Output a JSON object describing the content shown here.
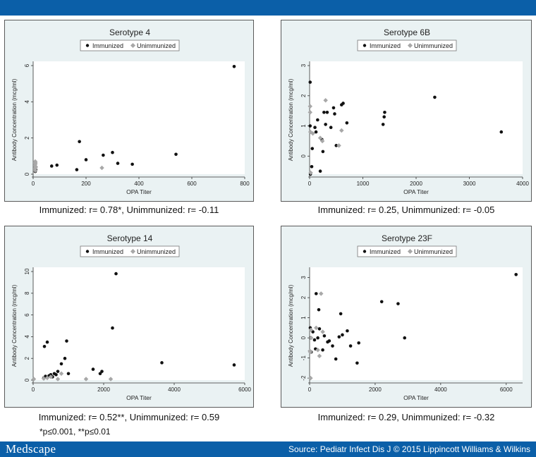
{
  "header": {
    "bar_color": "#0b5fa8"
  },
  "footer": {
    "brand": "Medscape",
    "source": "Source: Pediatr Infect Dis J © 2015 Lippincott Williams & Wilkins"
  },
  "footnote": "*p≤0.001, **p≤0.01",
  "colors": {
    "immunized": "#111111",
    "unimmunized": "#a8a8a8",
    "panel_bg": "#eaf2f3"
  },
  "chart_data": [
    {
      "type": "scatter",
      "title": "Serotype 4",
      "xlabel": "OPA Titer",
      "ylabel": "Antibody Concentration (mcg/ml)",
      "xlim": [
        0,
        800
      ],
      "ylim": [
        0,
        6
      ],
      "xticks": [
        0,
        200,
        400,
        600,
        800
      ],
      "yticks": [
        0,
        2,
        4,
        6
      ],
      "legend": [
        "Immunized",
        "Unimmunized"
      ],
      "caption": "Immunized: r= 0.78*, Unimmunized: r= -0.11",
      "series": [
        {
          "name": "Immunized",
          "points": [
            [
              8,
              0.15
            ],
            [
              8,
              0.2
            ],
            [
              8,
              0.3
            ],
            [
              8,
              0.4
            ],
            [
              10,
              0.25
            ],
            [
              70,
              0.45
            ],
            [
              90,
              0.5
            ],
            [
              165,
              0.25
            ],
            [
              175,
              1.8
            ],
            [
              200,
              0.8
            ],
            [
              265,
              1.05
            ],
            [
              300,
              1.2
            ],
            [
              320,
              0.6
            ],
            [
              375,
              0.55
            ],
            [
              540,
              1.1
            ],
            [
              760,
              5.95
            ]
          ]
        },
        {
          "name": "Unimmunized",
          "points": [
            [
              8,
              0.2
            ],
            [
              8,
              0.3
            ],
            [
              8,
              0.35
            ],
            [
              8,
              0.45
            ],
            [
              8,
              0.55
            ],
            [
              8,
              0.6
            ],
            [
              8,
              0.65
            ],
            [
              8,
              0.7
            ],
            [
              10,
              0.4
            ],
            [
              260,
              0.35
            ]
          ]
        }
      ]
    },
    {
      "type": "scatter",
      "title": "Serotype 6B",
      "xlabel": "OPA Titer",
      "ylabel": "Antibody Concentration (mcg/ml)",
      "xlim": [
        0,
        4000
      ],
      "ylim": [
        -0.6,
        3
      ],
      "xticks": [
        0,
        1000,
        2000,
        3000,
        4000
      ],
      "yticks": [
        0,
        1,
        2,
        3
      ],
      "legend": [
        "Immunized",
        "Unimmunized"
      ],
      "caption": "Immunized: r= 0.25, Unimmunized: r= -0.05",
      "series": [
        {
          "name": "Immunized",
          "points": [
            [
              10,
              2.45
            ],
            [
              10,
              1.0
            ],
            [
              15,
              -0.6
            ],
            [
              40,
              -0.35
            ],
            [
              50,
              0.25
            ],
            [
              100,
              0.95
            ],
            [
              120,
              0.8
            ],
            [
              150,
              1.2
            ],
            [
              200,
              -0.5
            ],
            [
              230,
              0.55
            ],
            [
              250,
              0.15
            ],
            [
              270,
              1.45
            ],
            [
              300,
              1.05
            ],
            [
              330,
              1.45
            ],
            [
              400,
              0.95
            ],
            [
              450,
              1.6
            ],
            [
              470,
              1.4
            ],
            [
              500,
              0.35
            ],
            [
              600,
              1.7
            ],
            [
              630,
              1.75
            ],
            [
              700,
              1.1
            ],
            [
              1380,
              1.05
            ],
            [
              1400,
              1.3
            ],
            [
              1410,
              1.45
            ],
            [
              2350,
              1.95
            ],
            [
              3600,
              0.8
            ]
          ]
        },
        {
          "name": "Unimmunized",
          "points": [
            [
              10,
              1.65
            ],
            [
              10,
              1.45
            ],
            [
              15,
              0.8
            ],
            [
              20,
              -0.55
            ],
            [
              60,
              0.75
            ],
            [
              200,
              0.6
            ],
            [
              240,
              0.5
            ],
            [
              300,
              1.85
            ],
            [
              550,
              0.35
            ],
            [
              600,
              0.85
            ]
          ]
        }
      ]
    },
    {
      "type": "scatter",
      "title": "Serotype 14",
      "xlabel": "OPA Titer",
      "ylabel": "Antibody Concentration (mcg/ml)",
      "xlim": [
        0,
        6000
      ],
      "ylim": [
        0,
        10
      ],
      "xticks": [
        0,
        2000,
        4000,
        6000
      ],
      "yticks": [
        0,
        2,
        4,
        6,
        8,
        10
      ],
      "legend": [
        "Immunized",
        "Unimmunized"
      ],
      "caption": "Immunized: r= 0.52**, Unimmunized: r= 0.59",
      "series": [
        {
          "name": "Immunized",
          "points": [
            [
              300,
              0.2
            ],
            [
              320,
              3.1
            ],
            [
              350,
              0.35
            ],
            [
              400,
              3.5
            ],
            [
              450,
              0.4
            ],
            [
              500,
              0.5
            ],
            [
              550,
              0.3
            ],
            [
              600,
              0.6
            ],
            [
              650,
              0.5
            ],
            [
              700,
              0.8
            ],
            [
              800,
              1.5
            ],
            [
              900,
              2.0
            ],
            [
              950,
              3.6
            ],
            [
              1000,
              0.6
            ],
            [
              1700,
              1.0
            ],
            [
              1900,
              0.6
            ],
            [
              1950,
              0.8
            ],
            [
              2250,
              4.8
            ],
            [
              2350,
              9.8
            ],
            [
              3650,
              1.6
            ],
            [
              5700,
              1.4
            ]
          ]
        },
        {
          "name": "Unimmunized",
          "points": [
            [
              20,
              0.1
            ],
            [
              300,
              0.15
            ],
            [
              400,
              0.2
            ],
            [
              500,
              0.3
            ],
            [
              700,
              0.1
            ],
            [
              800,
              0.6
            ],
            [
              1500,
              0.1
            ],
            [
              2200,
              0.1
            ]
          ]
        }
      ]
    },
    {
      "type": "scatter",
      "title": "Serotype 23F",
      "xlabel": "OPA Titer",
      "ylabel": "Antibody Concentration (mcg/ml)",
      "xlim": [
        0,
        6500
      ],
      "ylim": [
        -2.1,
        3.3
      ],
      "xticks": [
        0,
        2000,
        4000,
        6000
      ],
      "yticks": [
        -2,
        -1,
        0,
        1,
        2,
        3
      ],
      "legend": [
        "Immunized",
        "Unimmunized"
      ],
      "caption": "Immunized: r= 0.29, Unimmunized: r= -0.32",
      "series": [
        {
          "name": "Immunized",
          "points": [
            [
              20,
              0.5
            ],
            [
              30,
              0.0
            ],
            [
              50,
              -0.7
            ],
            [
              100,
              0.3
            ],
            [
              150,
              -0.1
            ],
            [
              180,
              -0.55
            ],
            [
              200,
              2.2
            ],
            [
              250,
              0.0
            ],
            [
              280,
              1.4
            ],
            [
              300,
              0.45
            ],
            [
              400,
              -0.6
            ],
            [
              450,
              0.1
            ],
            [
              550,
              -0.2
            ],
            [
              600,
              -0.15
            ],
            [
              700,
              -0.4
            ],
            [
              800,
              -1.05
            ],
            [
              900,
              0.05
            ],
            [
              950,
              1.2
            ],
            [
              1000,
              0.15
            ],
            [
              1150,
              0.35
            ],
            [
              1250,
              -0.4
            ],
            [
              1450,
              -1.25
            ],
            [
              1500,
              -0.25
            ],
            [
              2200,
              1.8
            ],
            [
              2700,
              1.7
            ],
            [
              2900,
              0.0
            ],
            [
              6300,
              3.15
            ]
          ]
        },
        {
          "name": "Unimmunized",
          "points": [
            [
              10,
              -0.65
            ],
            [
              20,
              -0.7
            ],
            [
              30,
              -2.0
            ],
            [
              40,
              0.4
            ],
            [
              50,
              0.0
            ],
            [
              200,
              0.5
            ],
            [
              250,
              -0.6
            ],
            [
              300,
              -0.9
            ],
            [
              350,
              2.2
            ],
            [
              400,
              0.3
            ]
          ]
        }
      ]
    }
  ]
}
